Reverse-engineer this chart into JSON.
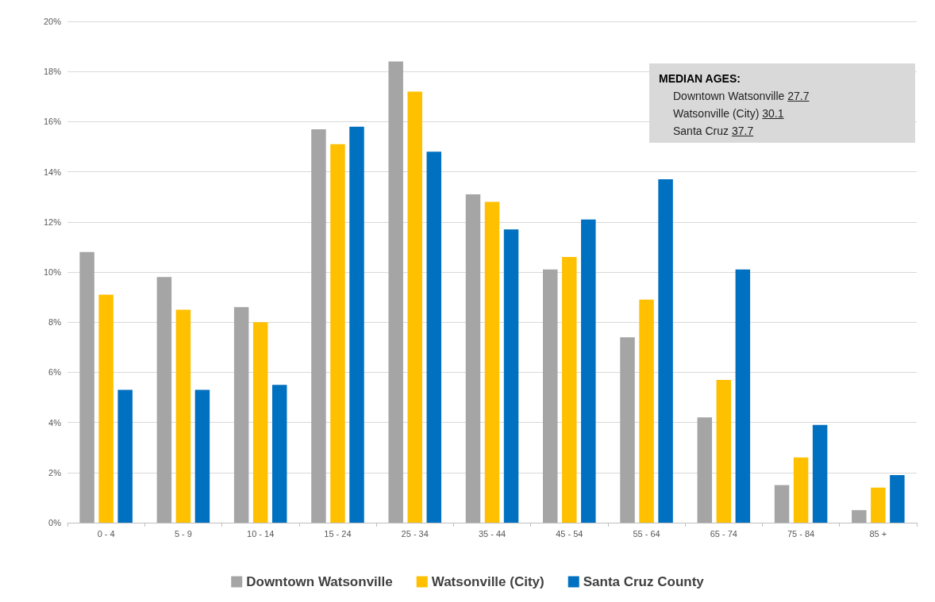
{
  "chart_data": {
    "type": "bar",
    "categories": [
      "0 - 4",
      "5 - 9",
      "10 - 14",
      "15 - 24",
      "25 - 34",
      "35 - 44",
      "45 - 54",
      "55 - 64",
      "65 - 74",
      "75 - 84",
      "85 +"
    ],
    "series": [
      {
        "name": "Downtown Watsonville",
        "color": "#a5a5a5",
        "values": [
          10.8,
          9.8,
          8.6,
          15.7,
          18.4,
          13.1,
          10.1,
          7.4,
          4.2,
          1.5,
          0.5
        ]
      },
      {
        "name": "Watsonville (City)",
        "color": "#ffc000",
        "values": [
          9.1,
          8.5,
          8.0,
          15.1,
          17.2,
          12.8,
          10.6,
          8.9,
          5.7,
          2.6,
          1.4
        ]
      },
      {
        "name": "Santa Cruz County",
        "color": "#0070c0",
        "values": [
          5.3,
          5.3,
          5.5,
          15.8,
          14.8,
          11.7,
          12.1,
          13.7,
          10.1,
          3.9,
          1.9
        ]
      }
    ],
    "ylim": [
      0,
      20
    ],
    "yticks": [
      {
        "value": 0,
        "label": "0%"
      },
      {
        "value": 2,
        "label": "2%"
      },
      {
        "value": 4,
        "label": "4%"
      },
      {
        "value": 6,
        "label": "6%"
      },
      {
        "value": 8,
        "label": "8%"
      },
      {
        "value": 10,
        "label": "10%"
      },
      {
        "value": 12,
        "label": "12%"
      },
      {
        "value": 14,
        "label": "14%"
      },
      {
        "value": 16,
        "label": "16%"
      },
      {
        "value": 18,
        "label": "18%"
      },
      {
        "value": 20,
        "label": "20%"
      }
    ],
    "grid": "y",
    "legend": "bottom",
    "annotations": [
      "MEDIAN AGES:",
      "Downtown Watsonville 27.7",
      "Watsonville (City) 30.1",
      "Santa Cruz 37.7"
    ]
  }
}
